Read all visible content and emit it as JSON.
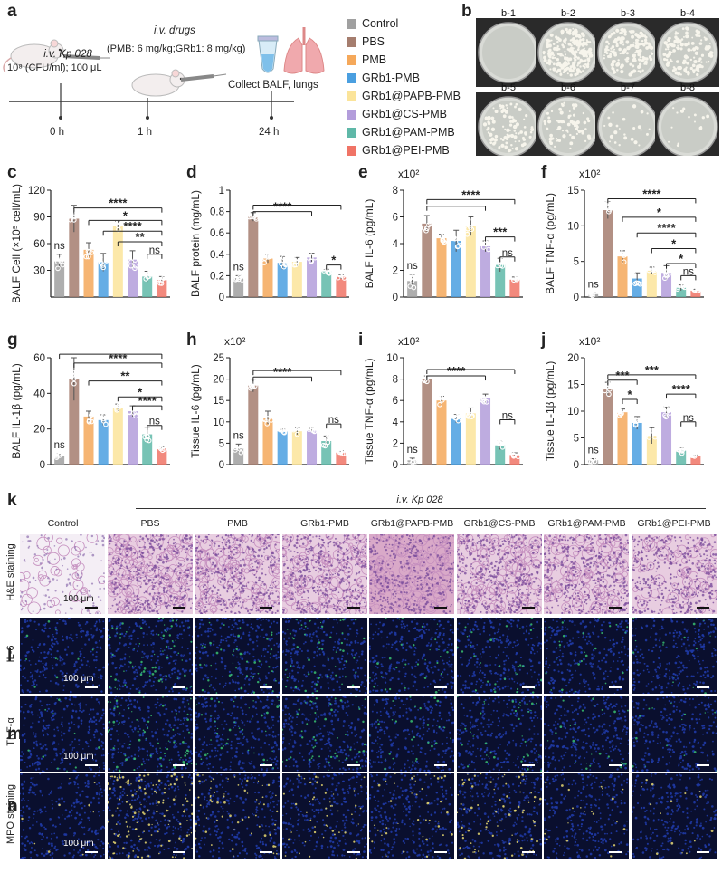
{
  "panel_letters": {
    "a": "a",
    "b": "b",
    "c": "c",
    "d": "d",
    "e": "e",
    "f": "f",
    "g": "g",
    "h": "h",
    "i": "i",
    "j": "j",
    "k": "k",
    "l": "l",
    "m": "m",
    "n": "n"
  },
  "schematic": {
    "infection_line1": "i.v. Kp 028",
    "infection_line2": "10⁸ (CFU/ml); 100 μL",
    "drugs_title": "i.v. drugs",
    "drugs_dose": "(PMB: 6 mg/kg;GRb1: 8 mg/kg)",
    "collect": "Collect BALF, lungs",
    "t0": "0 h",
    "t1": "1 h",
    "t2": "24 h"
  },
  "legend": [
    {
      "label": "Control",
      "color": "#a0a0a0"
    },
    {
      "label": "PBS",
      "color": "#a57d6e"
    },
    {
      "label": "PMB",
      "color": "#f5a85a"
    },
    {
      "label": "GRb1-PMB",
      "color": "#4a9fe0"
    },
    {
      "label": "GRb1@PAPB-PMB",
      "color": "#fbe49a"
    },
    {
      "label": "GRb1@CS-PMB",
      "color": "#b39ddb"
    },
    {
      "label": "GRb1@PAM-PMB",
      "color": "#5fb8a8"
    },
    {
      "label": "GRb1@PEI-PMB",
      "color": "#f07466"
    }
  ],
  "dishes": [
    {
      "label": "b-1",
      "colonies": 0
    },
    {
      "label": "b-2",
      "colonies": 220
    },
    {
      "label": "b-3",
      "colonies": 160
    },
    {
      "label": "b-4",
      "colonies": 130
    },
    {
      "label": "b-5",
      "colonies": 90
    },
    {
      "label": "b-6",
      "colonies": 70
    },
    {
      "label": "b-7",
      "colonies": 25
    },
    {
      "label": "b-8",
      "colonies": 15
    }
  ],
  "chart_data": [
    {
      "type": "bar",
      "panel": "c",
      "ylabel": "BALF Cell (×10⁵ cell/mL)",
      "ylim": [
        0,
        120
      ],
      "yticks": [
        30,
        60,
        90,
        120
      ],
      "multiplier": "",
      "values": [
        40,
        88,
        53,
        39,
        80,
        42,
        23,
        19
      ],
      "errors": [
        8,
        15,
        8,
        10,
        5,
        10,
        6,
        4
      ],
      "sig": [
        {
          "from": 0,
          "to": 1,
          "y": 96,
          "text": "ns",
          "pos": "left"
        },
        {
          "from": 1,
          "to": 7,
          "y": 100,
          "text": "****"
        },
        {
          "from": 2,
          "to": 7,
          "y": 86,
          "text": "*"
        },
        {
          "from": 3,
          "to": 7,
          "y": 74,
          "text": "****"
        },
        {
          "from": 4,
          "to": 7,
          "y": 62,
          "text": "**"
        },
        {
          "from": 6,
          "to": 7,
          "y": 48,
          "text": "ns"
        }
      ]
    },
    {
      "type": "bar",
      "panel": "d",
      "ylabel": "BALF protein (mg/mL)",
      "ylim": [
        0,
        1.0
      ],
      "yticks": [
        0.0,
        0.2,
        0.4,
        0.6,
        0.8,
        1.0
      ],
      "multiplier": "",
      "values": [
        0.18,
        0.75,
        0.36,
        0.32,
        0.33,
        0.37,
        0.24,
        0.19
      ],
      "errors": [
        0.02,
        0.04,
        0.04,
        0.06,
        0.04,
        0.04,
        0.02,
        0.02
      ],
      "sig": [
        {
          "from": 1,
          "to": 7,
          "y": 0.86,
          "text": ""
        },
        {
          "from": 1,
          "to": 5,
          "y": 0.8,
          "text": "****"
        },
        {
          "from": 6,
          "to": 7,
          "y": 0.3,
          "text": "*"
        }
      ]
    },
    {
      "type": "bar",
      "panel": "e",
      "ylabel": "BALF IL-6 (pg/mL)",
      "ylim": [
        0,
        8
      ],
      "yticks": [
        0,
        2,
        4,
        6,
        8
      ],
      "multiplier": "x10²",
      "values": [
        1.2,
        5.5,
        4.4,
        4.2,
        5.3,
        3.8,
        2.4,
        1.3
      ],
      "errors": [
        0.5,
        0.6,
        0.3,
        0.8,
        0.7,
        0.4,
        0.5,
        0.2
      ],
      "sig": [
        {
          "from": 1,
          "to": 7,
          "y": 7.3,
          "text": "****"
        },
        {
          "from": 1,
          "to": 5,
          "y": 6.8,
          "text": ""
        },
        {
          "from": 5,
          "to": 7,
          "y": 4.5,
          "text": "***"
        },
        {
          "from": 6,
          "to": 7,
          "y": 3.0,
          "text": "ns"
        }
      ]
    },
    {
      "type": "bar",
      "panel": "f",
      "ylabel": "BALF TNF-α (pg/mL)",
      "ylim": [
        0,
        15
      ],
      "yticks": [
        0,
        5,
        10,
        15
      ],
      "multiplier": "x10²",
      "values": [
        0.4,
        12.2,
        5.7,
        2.6,
        3.7,
        3.4,
        1.3,
        0.9
      ],
      "errors": [
        0.2,
        1.2,
        0.8,
        0.8,
        0.5,
        1.0,
        0.4,
        0.2
      ],
      "sig": [
        {
          "from": 1,
          "to": 7,
          "y": 13.8,
          "text": "****"
        },
        {
          "from": 2,
          "to": 7,
          "y": 11.2,
          "text": "*"
        },
        {
          "from": 3,
          "to": 7,
          "y": 9.0,
          "text": "****"
        },
        {
          "from": 4,
          "to": 7,
          "y": 6.8,
          "text": "*"
        },
        {
          "from": 5,
          "to": 7,
          "y": 4.7,
          "text": "*"
        },
        {
          "from": 6,
          "to": 7,
          "y": 3.0,
          "text": "ns"
        }
      ]
    },
    {
      "type": "bar",
      "panel": "g",
      "ylabel": "BALF IL-1β (pg/mL)",
      "ylim": [
        0,
        60
      ],
      "yticks": [
        0,
        20,
        40,
        60
      ],
      "multiplier": "",
      "values": [
        5,
        48,
        27,
        25,
        32,
        30,
        17,
        9
      ],
      "errors": [
        1,
        12,
        3,
        3,
        2,
        3,
        4,
        1
      ],
      "sig": [
        {
          "from": 0,
          "to": 7,
          "y": 62,
          "text": ""
        },
        {
          "from": 1,
          "to": 7,
          "y": 57,
          "text": "****"
        },
        {
          "from": 2,
          "to": 7,
          "y": 47,
          "text": "**"
        },
        {
          "from": 4,
          "to": 7,
          "y": 38,
          "text": "*"
        },
        {
          "from": 5,
          "to": 7,
          "y": 33,
          "text": "****"
        },
        {
          "from": 6,
          "to": 7,
          "y": 22,
          "text": "ns"
        }
      ]
    },
    {
      "type": "bar",
      "panel": "h",
      "ylabel": "Tissue IL-6 (pg/mL)",
      "ylim": [
        0,
        25
      ],
      "yticks": [
        0,
        5,
        10,
        15,
        20,
        25
      ],
      "multiplier": "x10²",
      "values": [
        3.8,
        18.5,
        11,
        7.8,
        7.8,
        8,
        5.5,
        2.8
      ],
      "errors": [
        1.0,
        1.5,
        1.5,
        0.5,
        0.8,
        0.5,
        1.2,
        0.4
      ],
      "sig": [
        {
          "from": 1,
          "to": 7,
          "y": 22,
          "text": ""
        },
        {
          "from": 1,
          "to": 5,
          "y": 20.5,
          "text": "****"
        },
        {
          "from": 6,
          "to": 7,
          "y": 9.5,
          "text": "ns"
        }
      ]
    },
    {
      "type": "bar",
      "panel": "i",
      "ylabel": "Tissue TNF-α (pg/mL)",
      "ylim": [
        0,
        10
      ],
      "yticks": [
        0,
        2,
        4,
        6,
        8,
        10
      ],
      "multiplier": "x10²",
      "values": [
        0.4,
        8.0,
        6.0,
        4.3,
        4.8,
        6.2,
        1.8,
        0.9
      ],
      "errors": [
        0.2,
        0.3,
        0.4,
        0.4,
        0.5,
        0.4,
        0.4,
        0.2
      ],
      "sig": [
        {
          "from": 1,
          "to": 7,
          "y": 8.9,
          "text": ""
        },
        {
          "from": 1,
          "to": 5,
          "y": 8.3,
          "text": "****"
        },
        {
          "from": 6,
          "to": 7,
          "y": 4.2,
          "text": "ns"
        }
      ]
    },
    {
      "type": "bar",
      "panel": "j",
      "ylabel": "Tissue IL-1β (pg/mL)",
      "ylim": [
        0,
        20
      ],
      "yticks": [
        0,
        5,
        10,
        15,
        20
      ],
      "multiplier": "x10²",
      "values": [
        0.8,
        14.2,
        9.8,
        7.8,
        5.4,
        9.8,
        2.6,
        1.6
      ],
      "errors": [
        0.3,
        1.2,
        0.6,
        1.2,
        1.5,
        1.0,
        0.5,
        0.2
      ],
      "sig": [
        {
          "from": 1,
          "to": 3,
          "y": 15.8,
          "text": "***"
        },
        {
          "from": 2,
          "to": 3,
          "y": 12.2,
          "text": "*"
        },
        {
          "from": 1,
          "to": 7,
          "y": 16.8,
          "text": "***"
        },
        {
          "from": 5,
          "to": 7,
          "y": 13.2,
          "text": "****"
        },
        {
          "from": 6,
          "to": 7,
          "y": 8.0,
          "text": "ns"
        }
      ]
    }
  ],
  "ns_control": "ns",
  "histology": {
    "header": "i.v. Kp 028",
    "columns": [
      "Control",
      "PBS",
      "PMB",
      "GRb1-PMB",
      "GRb1@PAPB-PMB",
      "GRb1@CS-PMB",
      "GRb1@PAM-PMB",
      "GRb1@PEI-PMB"
    ],
    "rows": [
      {
        "label": "H&E staining",
        "kind": "he"
      },
      {
        "label": "IL-6",
        "kind": "if-green"
      },
      {
        "label": "TNF-α",
        "kind": "if-green"
      },
      {
        "label": "MPO staining",
        "kind": "if-yellow"
      }
    ],
    "scale": "100 μm"
  }
}
